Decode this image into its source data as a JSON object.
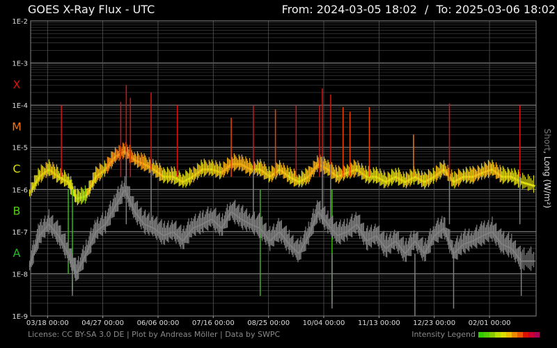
{
  "header": {
    "title": "GOES X-Ray Flux - UTC",
    "from_label": "From:",
    "from_value": "2024-03-05 18:02",
    "to_label": "To:",
    "to_value": "2025-03-06 18:02",
    "separator": "/"
  },
  "footer": {
    "license": "License: CC BY-SA 3.0 DE | Plot by Andreas Möller | Data by SWPC"
  },
  "legend": {
    "label": "Intensity Legend",
    "colors": [
      "#33cc00",
      "#55cc00",
      "#88cc00",
      "#bbdd00",
      "#dddd00",
      "#eebb00",
      "#ee8800",
      "#ee5500",
      "#dd1100",
      "#cc0033",
      "#aa0055"
    ]
  },
  "chart_data": {
    "type": "line",
    "ylabel_text": "Short, Long (W/m²)",
    "ylabel_short": "Short",
    "ylabel_long": ", Long (W/m²)",
    "y_scale": "log",
    "ylim": [
      1e-09,
      0.01
    ],
    "y_ticks": [
      "1E-9",
      "1E-8",
      "1E-7",
      "1E-6",
      "1E-5",
      "1E-4",
      "1E-3",
      "1E-2"
    ],
    "flare_classes": [
      {
        "label": "A",
        "color": "#22bb22",
        "level": 1e-08
      },
      {
        "label": "B",
        "color": "#55cc11",
        "level": 1e-07
      },
      {
        "label": "C",
        "color": "#dddd11",
        "level": 1e-06
      },
      {
        "label": "M",
        "color": "#ee7711",
        "level": 1e-05
      },
      {
        "label": "X",
        "color": "#dd1111",
        "level": 0.0001
      }
    ],
    "xlim": [
      "2024-03-05",
      "2025-03-06"
    ],
    "x_ticks": [
      {
        "date": "2024-03-18",
        "label": "03/18 00:00"
      },
      {
        "date": "2024-04-27",
        "label": "04/27 00:00"
      },
      {
        "date": "2024-06-06",
        "label": "06/06 00:00"
      },
      {
        "date": "2024-07-16",
        "label": "07/16 00:00"
      },
      {
        "date": "2024-08-25",
        "label": "08/25 00:00"
      },
      {
        "date": "2024-10-04",
        "label": "10/04 00:00"
      },
      {
        "date": "2024-11-13",
        "label": "11/13 00:00"
      },
      {
        "date": "2024-12-23",
        "label": "12/23 00:00"
      },
      {
        "date": "2025-02-01",
        "label": "02/01 00:00"
      }
    ],
    "grid": true,
    "series": [
      {
        "name": "Long",
        "color_scale": "intensity",
        "points": [
          {
            "date": "2024-03-05",
            "value": 8e-07
          },
          {
            "date": "2024-03-12",
            "value": 2e-06
          },
          {
            "date": "2024-03-19",
            "value": 3e-06
          },
          {
            "date": "2024-03-26",
            "value": 2e-06
          },
          {
            "date": "2024-04-02",
            "value": 1.5e-06
          },
          {
            "date": "2024-04-08",
            "value": 6e-07
          },
          {
            "date": "2024-04-15",
            "value": 7e-07
          },
          {
            "date": "2024-04-22",
            "value": 2e-06
          },
          {
            "date": "2024-04-29",
            "value": 3e-06
          },
          {
            "date": "2024-05-06",
            "value": 6e-06
          },
          {
            "date": "2024-05-13",
            "value": 8e-06
          },
          {
            "date": "2024-05-20",
            "value": 5e-06
          },
          {
            "date": "2024-05-27",
            "value": 4e-06
          },
          {
            "date": "2024-06-03",
            "value": 3e-06
          },
          {
            "date": "2024-06-10",
            "value": 2e-06
          },
          {
            "date": "2024-06-17",
            "value": 2e-06
          },
          {
            "date": "2024-06-24",
            "value": 1.5e-06
          },
          {
            "date": "2024-07-01",
            "value": 2e-06
          },
          {
            "date": "2024-07-08",
            "value": 3e-06
          },
          {
            "date": "2024-07-15",
            "value": 3e-06
          },
          {
            "date": "2024-07-22",
            "value": 2.5e-06
          },
          {
            "date": "2024-07-29",
            "value": 4e-06
          },
          {
            "date": "2024-08-05",
            "value": 4e-06
          },
          {
            "date": "2024-08-12",
            "value": 3e-06
          },
          {
            "date": "2024-08-19",
            "value": 3e-06
          },
          {
            "date": "2024-08-26",
            "value": 2e-06
          },
          {
            "date": "2024-09-02",
            "value": 3e-06
          },
          {
            "date": "2024-09-09",
            "value": 2e-06
          },
          {
            "date": "2024-09-16",
            "value": 1.5e-06
          },
          {
            "date": "2024-09-23",
            "value": 2e-06
          },
          {
            "date": "2024-09-30",
            "value": 4e-06
          },
          {
            "date": "2024-10-07",
            "value": 3e-06
          },
          {
            "date": "2024-10-14",
            "value": 2e-06
          },
          {
            "date": "2024-10-21",
            "value": 2.5e-06
          },
          {
            "date": "2024-10-28",
            "value": 3e-06
          },
          {
            "date": "2024-11-04",
            "value": 2e-06
          },
          {
            "date": "2024-11-11",
            "value": 2e-06
          },
          {
            "date": "2024-11-18",
            "value": 1.5e-06
          },
          {
            "date": "2024-11-25",
            "value": 2e-06
          },
          {
            "date": "2024-12-02",
            "value": 1.5e-06
          },
          {
            "date": "2024-12-09",
            "value": 2e-06
          },
          {
            "date": "2024-12-16",
            "value": 1.5e-06
          },
          {
            "date": "2024-12-23",
            "value": 2e-06
          },
          {
            "date": "2024-12-30",
            "value": 3e-06
          },
          {
            "date": "2025-01-06",
            "value": 1.5e-06
          },
          {
            "date": "2025-01-13",
            "value": 2e-06
          },
          {
            "date": "2025-01-20",
            "value": 2e-06
          },
          {
            "date": "2025-01-27",
            "value": 2.5e-06
          },
          {
            "date": "2025-02-03",
            "value": 3e-06
          },
          {
            "date": "2025-02-10",
            "value": 2e-06
          },
          {
            "date": "2025-02-17",
            "value": 2e-06
          },
          {
            "date": "2025-02-24",
            "value": 1.5e-06
          },
          {
            "date": "2025-03-06",
            "value": 1.2e-06
          }
        ],
        "peaks": [
          {
            "date": "2024-03-28",
            "value": 0.0001
          },
          {
            "date": "2024-05-10",
            "value": 0.00012
          },
          {
            "date": "2024-05-14",
            "value": 0.0003
          },
          {
            "date": "2024-05-17",
            "value": 0.00015
          },
          {
            "date": "2024-06-01",
            "value": 0.0002
          },
          {
            "date": "2024-06-20",
            "value": 0.0001
          },
          {
            "date": "2024-07-29",
            "value": 5e-05
          },
          {
            "date": "2024-08-14",
            "value": 0.0001
          },
          {
            "date": "2024-08-30",
            "value": 8e-05
          },
          {
            "date": "2024-09-14",
            "value": 0.0001
          },
          {
            "date": "2024-10-01",
            "value": 0.0001
          },
          {
            "date": "2024-10-03",
            "value": 0.00025
          },
          {
            "date": "2024-10-09",
            "value": 0.00018
          },
          {
            "date": "2024-10-18",
            "value": 9e-05
          },
          {
            "date": "2024-10-23",
            "value": 7e-05
          },
          {
            "date": "2024-11-06",
            "value": 9e-05
          },
          {
            "date": "2024-12-08",
            "value": 2e-05
          },
          {
            "date": "2025-01-03",
            "value": 0.00011
          },
          {
            "date": "2025-02-23",
            "value": 0.0001
          }
        ],
        "dips": [
          {
            "date": "2024-04-02",
            "value": 1e-08
          },
          {
            "date": "2024-04-05",
            "value": 4e-09
          },
          {
            "date": "2024-08-19",
            "value": 3e-09
          },
          {
            "date": "2024-10-10",
            "value": 2e-09
          }
        ]
      },
      {
        "name": "Short",
        "color": "#808080",
        "points": [
          {
            "date": "2024-03-05",
            "value": 1.5e-08
          },
          {
            "date": "2024-03-12",
            "value": 8e-08
          },
          {
            "date": "2024-03-19",
            "value": 1.5e-07
          },
          {
            "date": "2024-03-26",
            "value": 8e-08
          },
          {
            "date": "2024-04-02",
            "value": 3e-08
          },
          {
            "date": "2024-04-08",
            "value": 1e-08
          },
          {
            "date": "2024-04-15",
            "value": 3e-08
          },
          {
            "date": "2024-04-22",
            "value": 1e-07
          },
          {
            "date": "2024-04-29",
            "value": 1.5e-07
          },
          {
            "date": "2024-05-06",
            "value": 4e-07
          },
          {
            "date": "2024-05-13",
            "value": 1e-06
          },
          {
            "date": "2024-05-20",
            "value": 3e-07
          },
          {
            "date": "2024-05-27",
            "value": 1.5e-07
          },
          {
            "date": "2024-06-03",
            "value": 1.2e-07
          },
          {
            "date": "2024-06-10",
            "value": 8e-08
          },
          {
            "date": "2024-06-17",
            "value": 1e-07
          },
          {
            "date": "2024-06-24",
            "value": 6e-08
          },
          {
            "date": "2024-07-01",
            "value": 1.2e-07
          },
          {
            "date": "2024-07-08",
            "value": 1.5e-07
          },
          {
            "date": "2024-07-15",
            "value": 2e-07
          },
          {
            "date": "2024-07-22",
            "value": 1.2e-07
          },
          {
            "date": "2024-07-29",
            "value": 3e-07
          },
          {
            "date": "2024-08-05",
            "value": 2e-07
          },
          {
            "date": "2024-08-12",
            "value": 1.5e-07
          },
          {
            "date": "2024-08-19",
            "value": 1.2e-07
          },
          {
            "date": "2024-08-26",
            "value": 6e-08
          },
          {
            "date": "2024-09-02",
            "value": 1e-07
          },
          {
            "date": "2024-09-09",
            "value": 5e-08
          },
          {
            "date": "2024-09-16",
            "value": 3e-08
          },
          {
            "date": "2024-09-23",
            "value": 8e-08
          },
          {
            "date": "2024-09-30",
            "value": 3e-07
          },
          {
            "date": "2024-10-07",
            "value": 1.5e-07
          },
          {
            "date": "2024-10-14",
            "value": 8e-08
          },
          {
            "date": "2024-10-21",
            "value": 1e-07
          },
          {
            "date": "2024-10-28",
            "value": 1.5e-07
          },
          {
            "date": "2024-11-04",
            "value": 6e-08
          },
          {
            "date": "2024-11-11",
            "value": 8e-08
          },
          {
            "date": "2024-11-18",
            "value": 4e-08
          },
          {
            "date": "2024-11-25",
            "value": 6e-08
          },
          {
            "date": "2024-12-02",
            "value": 3e-08
          },
          {
            "date": "2024-12-09",
            "value": 6e-08
          },
          {
            "date": "2024-12-16",
            "value": 3e-08
          },
          {
            "date": "2024-12-23",
            "value": 8e-08
          },
          {
            "date": "2024-12-30",
            "value": 1.2e-07
          },
          {
            "date": "2025-01-06",
            "value": 3e-08
          },
          {
            "date": "2025-01-13",
            "value": 5e-08
          },
          {
            "date": "2025-01-20",
            "value": 6e-08
          },
          {
            "date": "2025-01-27",
            "value": 8e-08
          },
          {
            "date": "2025-02-03",
            "value": 1e-07
          },
          {
            "date": "2025-02-10",
            "value": 5e-08
          },
          {
            "date": "2025-02-17",
            "value": 4e-08
          },
          {
            "date": "2025-02-24",
            "value": 2e-08
          },
          {
            "date": "2025-03-06",
            "value": 2e-08
          }
        ],
        "peaks": [
          {
            "date": "2024-05-14",
            "value": 8e-06
          },
          {
            "date": "2024-06-01",
            "value": 3e-06
          },
          {
            "date": "2024-08-14",
            "value": 3e-06
          },
          {
            "date": "2024-10-03",
            "value": 6e-06
          },
          {
            "date": "2024-10-09",
            "value": 4e-06
          },
          {
            "date": "2025-01-03",
            "value": 2e-06
          },
          {
            "date": "2025-02-23",
            "value": 2e-06
          }
        ],
        "dips": [
          {
            "date": "2024-04-05",
            "value": 3e-09
          },
          {
            "date": "2024-10-10",
            "value": 1.5e-09
          },
          {
            "date": "2024-12-09",
            "value": 1e-09
          },
          {
            "date": "2025-01-06",
            "value": 1.5e-09
          },
          {
            "date": "2025-02-24",
            "value": 3e-09
          }
        ]
      }
    ]
  }
}
